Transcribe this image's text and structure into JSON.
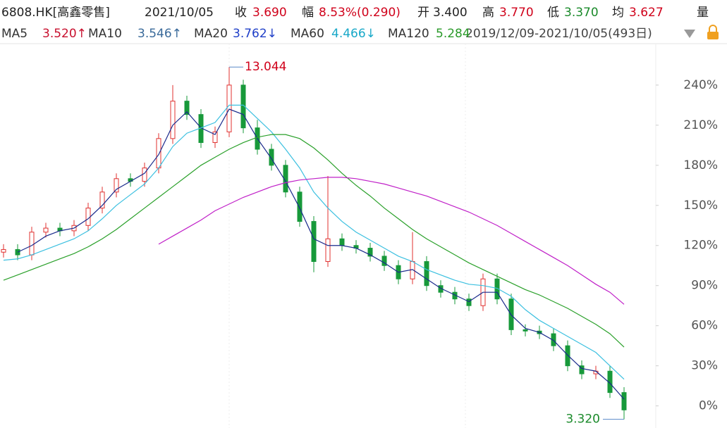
{
  "header": {
    "symbol": "6808.HK[高鑫零售]",
    "date": "2021/10/05",
    "fields": [
      {
        "label": "收",
        "value": "3.690",
        "color": "#d0021b"
      },
      {
        "label": "幅",
        "value": "8.53%(0.290)",
        "color": "#d0021b"
      },
      {
        "label": "开",
        "value": "3.400",
        "color": "#222222"
      },
      {
        "label": "高",
        "value": "3.770",
        "color": "#d0021b"
      },
      {
        "label": "低",
        "value": "3.370",
        "color": "#1a8a2a"
      },
      {
        "label": "均",
        "value": "3.627",
        "color": "#d0021b"
      }
    ],
    "volume_label": "量"
  },
  "ma_row": {
    "items": [
      {
        "label": "MA5",
        "value": "3.520↑",
        "color": "#c8102e"
      },
      {
        "label": "MA10",
        "value": "3.546↑",
        "color": "#3a6a9a"
      },
      {
        "label": "MA20",
        "value": "3.762↓",
        "color": "#1f3fc8"
      },
      {
        "label": "MA60",
        "value": "4.466↓",
        "color": "#18a8c8"
      },
      {
        "label": "MA120",
        "value": "5.284",
        "color": "#2a9a2a"
      }
    ],
    "range": "2019/12/09-2021/10/05(493日)"
  },
  "chart_data": {
    "type": "candlestick",
    "open": [
      115,
      117,
      113,
      130,
      133,
      131,
      135,
      148,
      160,
      170,
      168,
      178,
      200,
      228,
      218,
      197,
      205,
      240,
      208,
      192,
      180,
      160,
      138,
      108,
      125,
      120,
      118,
      112,
      105,
      95,
      108,
      90,
      85,
      80,
      75,
      95,
      80,
      57,
      56,
      54,
      45,
      30,
      24,
      26,
      10
    ],
    "high": [
      121,
      121,
      134,
      137,
      137,
      139,
      152,
      164,
      174,
      174,
      182,
      204,
      240,
      232,
      222,
      209,
      253.5,
      244,
      214,
      196,
      184,
      164,
      142,
      172,
      129,
      124,
      122,
      116,
      109,
      130,
      112,
      94,
      89,
      84,
      99,
      99,
      84,
      61,
      60,
      58,
      49,
      34,
      30,
      30,
      14
    ],
    "low": [
      111,
      109,
      109,
      126,
      127,
      127,
      131,
      144,
      156,
      164,
      164,
      174,
      196,
      214,
      193,
      193,
      201,
      204,
      188,
      176,
      156,
      134,
      100,
      104,
      116,
      114,
      108,
      101,
      91,
      91,
      86,
      81,
      76,
      71,
      71,
      76,
      53,
      52,
      50,
      41,
      26,
      20,
      20,
      6,
      -10
    ],
    "close": [
      117,
      113,
      130,
      133,
      131,
      135,
      148,
      160,
      170,
      168,
      178,
      200,
      228,
      218,
      197,
      205,
      240,
      208,
      192,
      180,
      160,
      138,
      108,
      125,
      120,
      118,
      112,
      105,
      95,
      108,
      90,
      85,
      80,
      75,
      95,
      80,
      57,
      56,
      54,
      45,
      30,
      24,
      26,
      10,
      -3
    ],
    "up_color": "#e0302f",
    "down_color": "#17993a",
    "lines": [
      {
        "color": "#1a2a8c",
        "values": [
          null,
          115,
          120,
          127,
          131,
          133,
          140,
          150,
          162,
          168,
          174,
          188,
          210,
          220,
          208,
          203,
          222,
          218,
          200,
          185,
          168,
          148,
          125,
          120,
          120,
          118,
          113,
          107,
          100,
          102,
          95,
          88,
          83,
          78,
          85,
          85,
          68,
          58,
          55,
          49,
          38,
          28,
          26,
          17,
          5
        ]
      },
      {
        "color": "#3cc0e0",
        "values": [
          109,
          110,
          113,
          117,
          121,
          125,
          131,
          140,
          150,
          158,
          166,
          178,
          194,
          204,
          208,
          212,
          225,
          225,
          215,
          205,
          192,
          178,
          160,
          148,
          138,
          130,
          124,
          118,
          112,
          108,
          102,
          98,
          94,
          91,
          90,
          88,
          82,
          72,
          64,
          58,
          52,
          46,
          40,
          30,
          20
        ]
      },
      {
        "color": "#2aa02a",
        "values": [
          94,
          98,
          102,
          106,
          110,
          114,
          119,
          125,
          132,
          140,
          148,
          156,
          164,
          172,
          180,
          186,
          192,
          197,
          201,
          203,
          203,
          200,
          193,
          184,
          174,
          165,
          157,
          148,
          140,
          132,
          125,
          119,
          113,
          107,
          102,
          97,
          92,
          87,
          83,
          78,
          73,
          67,
          61,
          54,
          44
        ]
      },
      {
        "color": "#c020c8",
        "values": [
          null,
          null,
          null,
          null,
          null,
          null,
          null,
          null,
          null,
          null,
          null,
          121,
          127,
          133,
          139,
          146,
          151,
          156,
          160,
          164,
          167,
          169,
          170,
          171,
          171,
          170,
          168,
          166,
          163,
          160,
          157,
          153,
          149,
          145,
          140,
          135,
          129,
          123,
          117,
          111,
          105,
          98,
          91,
          85,
          76
        ]
      }
    ],
    "ylim": [
      -16,
      271
    ],
    "yticks": [
      {
        "value": 0,
        "label": "0%"
      },
      {
        "value": 30,
        "label": "30%"
      },
      {
        "value": 60,
        "label": "60%"
      },
      {
        "value": 90,
        "label": "90%"
      },
      {
        "value": 120,
        "label": "120%"
      },
      {
        "value": 150,
        "label": "150%"
      },
      {
        "value": 180,
        "label": "180%"
      },
      {
        "value": 210,
        "label": "210%"
      },
      {
        "value": 240,
        "label": "240%"
      }
    ],
    "annotations": [
      {
        "text": "13.044",
        "color": "#d0021b"
      },
      {
        "text": "3.320",
        "color": "#1a8a2a"
      }
    ]
  }
}
